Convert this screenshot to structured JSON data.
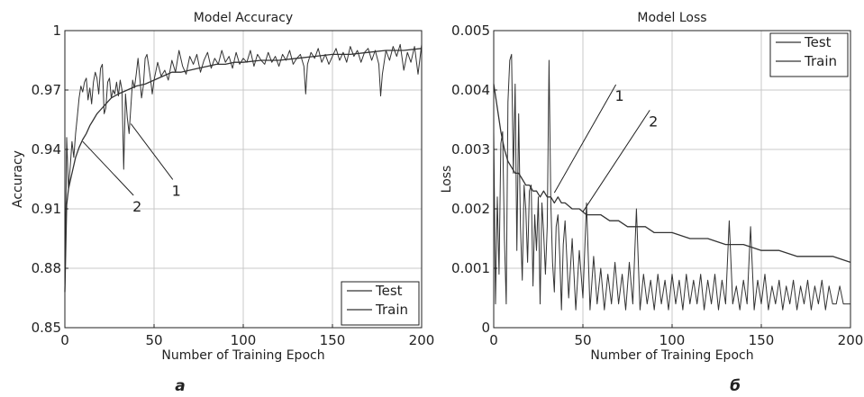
{
  "colors": {
    "line": "#333333",
    "grid": "#c8c8c8",
    "axis": "#222222"
  },
  "chart_data": [
    {
      "type": "line",
      "title": "Model Accuracy",
      "xlabel": "Number of Training Epoch",
      "ylabel": "Accuracy",
      "panel_label": "а",
      "xlim": [
        0,
        200
      ],
      "ylim": [
        0.85,
        1.0
      ],
      "xticks": [
        0,
        50,
        100,
        150,
        200
      ],
      "yticks": [
        0.85,
        0.88,
        0.91,
        0.94,
        0.97,
        1.0
      ],
      "ytick_labels": [
        "0.85",
        "0.88",
        "0.91",
        "0.94",
        "0.97",
        "1"
      ],
      "grid": true,
      "legend_position": "bottom-right",
      "legend": [
        "Test",
        "Train"
      ],
      "annotations": [
        {
          "text": "1",
          "x": 62,
          "y": 0.923,
          "from_x": 37,
          "from_y": 0.953
        },
        {
          "text": "2",
          "x": 40,
          "y": 0.915,
          "from_x": 10,
          "from_y": 0.944
        }
      ],
      "series": [
        {
          "name": "Test",
          "x": [
            0,
            1,
            2,
            3,
            4,
            5,
            6,
            7,
            8,
            9,
            10,
            11,
            12,
            13,
            14,
            15,
            16,
            17,
            18,
            19,
            20,
            21,
            22,
            23,
            24,
            25,
            26,
            27,
            28,
            29,
            30,
            31,
            32,
            33,
            34,
            35,
            36,
            37,
            38,
            39,
            40,
            41,
            42,
            43,
            44,
            45,
            46,
            47,
            48,
            49,
            50,
            52,
            54,
            56,
            58,
            60,
            62,
            64,
            66,
            68,
            70,
            72,
            74,
            76,
            78,
            80,
            82,
            84,
            86,
            88,
            90,
            92,
            94,
            96,
            98,
            100,
            102,
            104,
            106,
            108,
            110,
            112,
            114,
            116,
            118,
            120,
            122,
            124,
            126,
            128,
            130,
            132,
            134,
            135,
            136,
            138,
            140,
            142,
            144,
            146,
            148,
            150,
            152,
            154,
            156,
            158,
            160,
            162,
            164,
            166,
            168,
            170,
            172,
            174,
            176,
            177,
            178,
            180,
            182,
            184,
            186,
            188,
            190,
            192,
            194,
            196,
            198,
            200
          ],
          "y": [
            0.868,
            0.946,
            0.92,
            0.931,
            0.944,
            0.936,
            0.948,
            0.957,
            0.966,
            0.972,
            0.969,
            0.974,
            0.976,
            0.965,
            0.971,
            0.963,
            0.974,
            0.979,
            0.976,
            0.968,
            0.981,
            0.983,
            0.958,
            0.961,
            0.974,
            0.976,
            0.966,
            0.97,
            0.968,
            0.974,
            0.967,
            0.975,
            0.97,
            0.93,
            0.968,
            0.956,
            0.948,
            0.962,
            0.975,
            0.971,
            0.978,
            0.986,
            0.976,
            0.966,
            0.972,
            0.986,
            0.988,
            0.982,
            0.976,
            0.968,
            0.975,
            0.984,
            0.977,
            0.98,
            0.975,
            0.985,
            0.979,
            0.99,
            0.982,
            0.978,
            0.987,
            0.983,
            0.988,
            0.979,
            0.985,
            0.989,
            0.981,
            0.986,
            0.983,
            0.99,
            0.984,
            0.987,
            0.981,
            0.989,
            0.983,
            0.986,
            0.984,
            0.99,
            0.982,
            0.988,
            0.985,
            0.983,
            0.989,
            0.984,
            0.987,
            0.982,
            0.988,
            0.985,
            0.99,
            0.983,
            0.986,
            0.988,
            0.982,
            0.968,
            0.983,
            0.989,
            0.986,
            0.991,
            0.984,
            0.988,
            0.983,
            0.987,
            0.991,
            0.985,
            0.989,
            0.984,
            0.992,
            0.987,
            0.99,
            0.984,
            0.989,
            0.991,
            0.985,
            0.99,
            0.983,
            0.967,
            0.978,
            0.99,
            0.985,
            0.992,
            0.987,
            0.993,
            0.98,
            0.989,
            0.984,
            0.992,
            0.978,
            0.993
          ],
          "style": "jagged"
        },
        {
          "name": "Train",
          "x": [
            0,
            1,
            2,
            3,
            4,
            5,
            6,
            8,
            10,
            12,
            14,
            16,
            18,
            20,
            22,
            24,
            26,
            28,
            30,
            35,
            40,
            45,
            50,
            55,
            60,
            65,
            70,
            75,
            80,
            85,
            90,
            95,
            100,
            110,
            120,
            130,
            140,
            150,
            160,
            170,
            180,
            190,
            200
          ],
          "y": [
            0.868,
            0.912,
            0.92,
            0.924,
            0.928,
            0.932,
            0.936,
            0.941,
            0.945,
            0.948,
            0.952,
            0.955,
            0.958,
            0.96,
            0.962,
            0.964,
            0.966,
            0.967,
            0.968,
            0.97,
            0.972,
            0.973,
            0.975,
            0.977,
            0.979,
            0.979,
            0.98,
            0.981,
            0.982,
            0.983,
            0.983,
            0.984,
            0.984,
            0.985,
            0.985,
            0.986,
            0.987,
            0.988,
            0.988,
            0.989,
            0.99,
            0.99,
            0.991
          ],
          "style": "smooth"
        }
      ]
    },
    {
      "type": "line",
      "title": "Model Loss",
      "xlabel": "Number of Training Epoch",
      "ylabel": "Loss",
      "panel_label": "б",
      "xlim": [
        0,
        200
      ],
      "ylim": [
        0,
        0.005
      ],
      "xticks": [
        0,
        50,
        100,
        150,
        200
      ],
      "yticks": [
        0,
        0.001,
        0.002,
        0.003,
        0.004,
        0.005
      ],
      "ytick_labels": [
        "0",
        "0.001",
        "0.002",
        "0.003",
        "0.004",
        "0.005"
      ],
      "grid": true,
      "legend_position": "top-right",
      "legend": [
        "Test",
        "Train"
      ],
      "annotations": [
        {
          "text": "1",
          "x": 70,
          "y": 0.00403,
          "from_x": 34,
          "from_y": 0.00227
        },
        {
          "text": "2",
          "x": 89,
          "y": 0.0036,
          "from_x": 50,
          "from_y": 0.00195
        }
      ],
      "series": [
        {
          "name": "Test",
          "x": [
            0,
            1,
            2,
            3,
            4,
            5,
            6,
            7,
            8,
            9,
            10,
            11,
            12,
            13,
            14,
            15,
            16,
            17,
            18,
            19,
            20,
            21,
            22,
            23,
            24,
            25,
            26,
            27,
            28,
            29,
            30,
            31,
            32,
            33,
            34,
            35,
            36,
            37,
            38,
            39,
            40,
            42,
            44,
            46,
            48,
            50,
            52,
            54,
            56,
            58,
            60,
            62,
            64,
            66,
            68,
            70,
            72,
            74,
            76,
            78,
            80,
            82,
            84,
            86,
            88,
            90,
            92,
            94,
            96,
            98,
            100,
            102,
            104,
            106,
            108,
            110,
            112,
            114,
            116,
            118,
            120,
            122,
            124,
            126,
            128,
            130,
            132,
            134,
            136,
            138,
            140,
            142,
            144,
            146,
            148,
            150,
            152,
            154,
            156,
            158,
            160,
            162,
            164,
            166,
            168,
            170,
            172,
            174,
            176,
            178,
            180,
            182,
            184,
            186,
            188,
            190,
            192,
            194,
            196,
            198,
            200
          ],
          "y": [
            0.0033,
            0.0004,
            0.0022,
            0.0009,
            0.0031,
            0.0033,
            0.0015,
            0.0004,
            0.0038,
            0.0045,
            0.0046,
            0.0026,
            0.0041,
            0.0013,
            0.0036,
            0.0017,
            0.0008,
            0.0024,
            0.002,
            0.0011,
            0.0023,
            0.0024,
            0.0007,
            0.0019,
            0.0013,
            0.0022,
            0.0004,
            0.0021,
            0.0016,
            0.0009,
            0.0017,
            0.0045,
            0.0021,
            0.0011,
            0.0006,
            0.0017,
            0.0019,
            0.0012,
            0.0003,
            0.0014,
            0.0018,
            0.0005,
            0.0015,
            0.0003,
            0.0013,
            0.0005,
            0.0021,
            0.0003,
            0.0012,
            0.0004,
            0.001,
            0.0003,
            0.0009,
            0.0004,
            0.0011,
            0.0004,
            0.0009,
            0.0003,
            0.0011,
            0.0004,
            0.002,
            0.0003,
            0.0009,
            0.0004,
            0.0008,
            0.0003,
            0.0009,
            0.0004,
            0.0008,
            0.0003,
            0.0009,
            0.0004,
            0.0008,
            0.0003,
            0.0009,
            0.0004,
            0.0008,
            0.0004,
            0.0009,
            0.0003,
            0.0008,
            0.0004,
            0.0009,
            0.0003,
            0.0008,
            0.0004,
            0.0018,
            0.0004,
            0.0007,
            0.0003,
            0.0008,
            0.0004,
            0.0017,
            0.0003,
            0.0008,
            0.0004,
            0.0009,
            0.0003,
            0.0007,
            0.0004,
            0.0008,
            0.0003,
            0.0007,
            0.0004,
            0.0008,
            0.0003,
            0.0007,
            0.0004,
            0.0008,
            0.0003,
            0.0007,
            0.0004,
            0.0008,
            0.0003,
            0.0007,
            0.0004,
            0.0004,
            0.0007,
            0.0004,
            0.0004,
            0.0004
          ],
          "style": "jagged"
        },
        {
          "name": "Train",
          "x": [
            0,
            2,
            4,
            6,
            8,
            10,
            12,
            14,
            16,
            18,
            20,
            22,
            24,
            26,
            28,
            30,
            32,
            34,
            36,
            38,
            40,
            44,
            48,
            52,
            56,
            60,
            65,
            70,
            75,
            80,
            85,
            90,
            95,
            100,
            110,
            120,
            130,
            140,
            150,
            160,
            170,
            180,
            190,
            200
          ],
          "y": [
            0.0041,
            0.0037,
            0.0033,
            0.003,
            0.0028,
            0.0027,
            0.0026,
            0.0026,
            0.0025,
            0.0024,
            0.0024,
            0.0023,
            0.0023,
            0.0022,
            0.0023,
            0.0022,
            0.0022,
            0.0021,
            0.0022,
            0.0021,
            0.0021,
            0.002,
            0.002,
            0.0019,
            0.0019,
            0.0019,
            0.0018,
            0.0018,
            0.0017,
            0.0017,
            0.0017,
            0.0016,
            0.0016,
            0.0016,
            0.0015,
            0.0015,
            0.0014,
            0.0014,
            0.0013,
            0.0013,
            0.0012,
            0.0012,
            0.0012,
            0.0011
          ],
          "style": "smooth"
        }
      ]
    }
  ]
}
